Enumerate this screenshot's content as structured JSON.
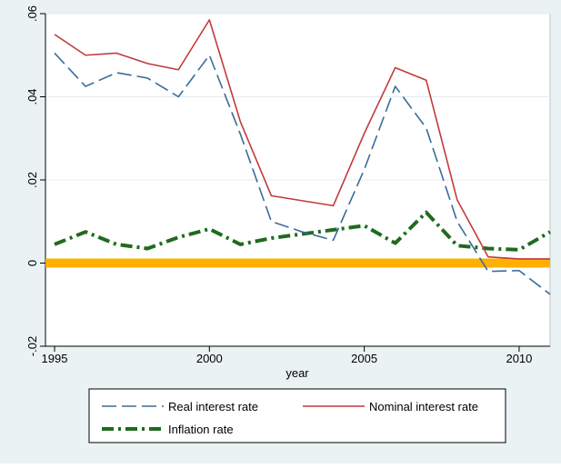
{
  "chart_data": {
    "type": "line",
    "xlabel": "year",
    "ylabel": "",
    "xlim": [
      1995,
      2011
    ],
    "ylim": [
      -0.02,
      0.06
    ],
    "x_ticks": [
      1995,
      2000,
      2005,
      2010
    ],
    "x_tick_labels": [
      "1995",
      "2000",
      "2005",
      "2010"
    ],
    "y_ticks": [
      -0.02,
      0,
      0.02,
      0.04,
      0.06
    ],
    "y_tick_labels": [
      "-.02",
      "0",
      ".02",
      ".04",
      ".06"
    ],
    "grid": true,
    "legend_position": "bottom",
    "x": [
      1995,
      1996,
      1997,
      1998,
      1999,
      2000,
      2001,
      2002,
      2003,
      2004,
      2005,
      2006,
      2007,
      2008,
      2009,
      2010,
      2011
    ],
    "series": [
      {
        "name": "Real interest rate",
        "color": "#3a6c9a",
        "style": "long-dash",
        "values": [
          0.0505,
          0.0425,
          0.0458,
          0.0445,
          0.04,
          0.05,
          0.031,
          0.01,
          0.0075,
          0.0055,
          0.0225,
          0.0425,
          0.0325,
          0.01,
          -0.002,
          -0.0018,
          -0.0075
        ]
      },
      {
        "name": "Nominal interest rate",
        "color": "#c23a3a",
        "style": "solid",
        "values": [
          0.055,
          0.05,
          0.0505,
          0.048,
          0.0465,
          0.0585,
          0.034,
          0.0162,
          0.015,
          0.0138,
          0.0312,
          0.047,
          0.044,
          0.0152,
          0.0015,
          0.001,
          0.001
        ]
      },
      {
        "name": "Inflation rate",
        "color": "#1e6b1e",
        "style": "dash-dot",
        "values": [
          0.0045,
          0.0075,
          0.0045,
          0.0035,
          0.0062,
          0.0082,
          0.0045,
          0.006,
          0.007,
          0.008,
          0.009,
          0.0048,
          0.0122,
          0.0042,
          0.0035,
          0.0032,
          0.0075
        ]
      }
    ],
    "reference_line": {
      "y": 0,
      "color": "#ffb000"
    },
    "colors": {
      "background": "#eaf2f3",
      "plot_background": "#ffffff",
      "grid": "#e3ecee"
    }
  }
}
